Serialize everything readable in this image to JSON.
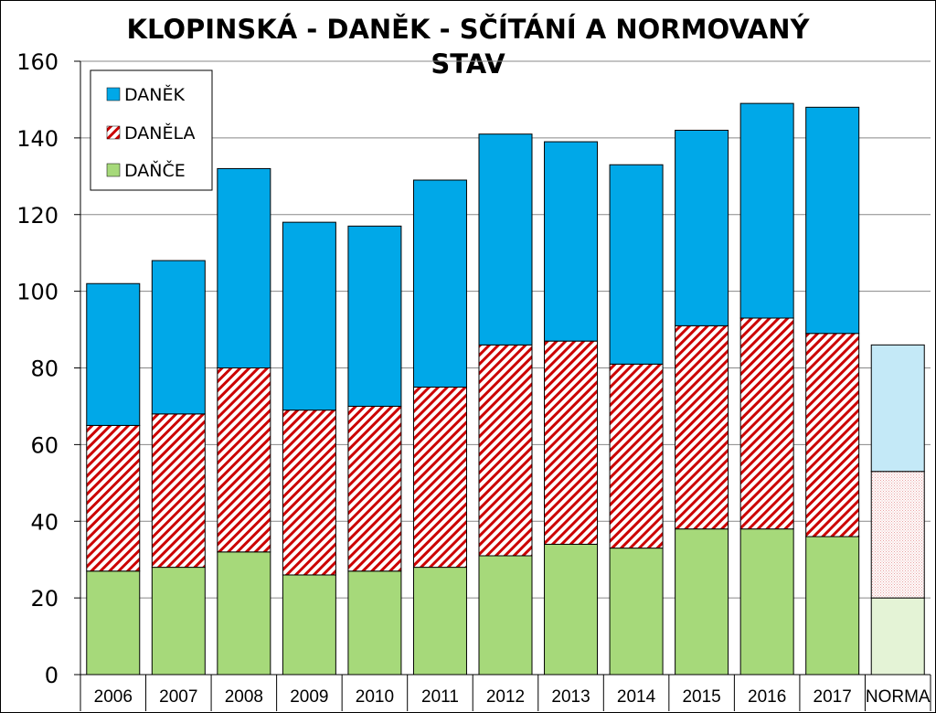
{
  "chart_data": {
    "type": "bar",
    "stacked": true,
    "title": "KLOPINSKÁ - DANĚK - SČÍTÁNÍ A NORMOVANÝ STAV",
    "title_lines": [
      "KLOPINSKÁ - DANĚK - SČÍTÁNÍ A NORMOVANÝ",
      "STAV"
    ],
    "categories": [
      "2006",
      "2007",
      "2008",
      "2009",
      "2010",
      "2011",
      "2012",
      "2013",
      "2014",
      "2015",
      "2016",
      "2017",
      "NORMA"
    ],
    "series": [
      {
        "name": "DAŇČE",
        "values": [
          27,
          28,
          32,
          26,
          27,
          28,
          31,
          34,
          33,
          38,
          38,
          36,
          20
        ],
        "color": "#a6d97a",
        "pattern": "solid"
      },
      {
        "name": "DANĚLA",
        "values": [
          38,
          40,
          48,
          43,
          43,
          47,
          55,
          53,
          48,
          53,
          55,
          53,
          33
        ],
        "color": "#cc0000",
        "pattern": "diagonal-hatch"
      },
      {
        "name": "DANĚK",
        "values": [
          37,
          40,
          52,
          49,
          47,
          54,
          55,
          52,
          52,
          51,
          56,
          59,
          33
        ],
        "color": "#00a8e8",
        "pattern": "solid"
      }
    ],
    "highlight_last_category_light": true,
    "xlabel": "",
    "ylabel": "",
    "ylim": [
      0,
      160
    ],
    "yticks": [
      "0",
      "20",
      "40",
      "60",
      "80",
      "100",
      "120",
      "140",
      "160"
    ],
    "grid": true,
    "legend_position": "top-left",
    "legend_order": [
      "DANĚK",
      "DANĚLA",
      "DAŇČE"
    ]
  }
}
